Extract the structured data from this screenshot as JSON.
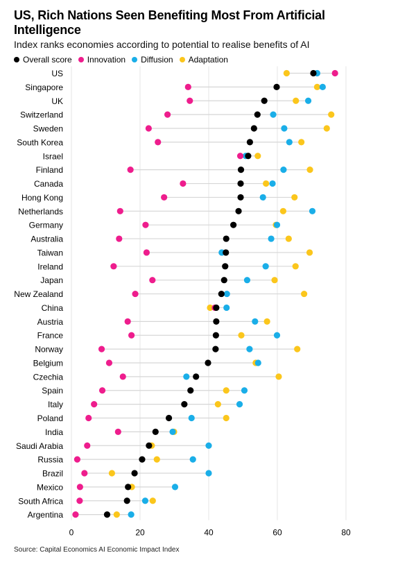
{
  "title": "US, Rich Nations Seen Benefiting Most From Artificial Intelligence",
  "subtitle": "Index ranks economies according to potential to realise benefits of AI",
  "source": "Source: Capital Economics AI Economic Impact Index",
  "colors": {
    "overall": "#000000",
    "innovation": "#ee1d8d",
    "diffusion": "#1aaee8",
    "adaptation": "#fbc61c",
    "range_line": "#d6d6d6",
    "grid": "#e6e6e6"
  },
  "chart_data": {
    "type": "scatter",
    "title": "US, Rich Nations Seen Benefiting Most From Artificial Intelligence",
    "subtitle": "Index ranks economies according to potential to realise benefits of AI",
    "xlabel": "",
    "ylabel": "",
    "xlim": [
      0,
      80
    ],
    "x_ticks": [
      0,
      20,
      40,
      60,
      80
    ],
    "grid": true,
    "legend_position": "top-left",
    "categories": [
      "US",
      "Singapore",
      "UK",
      "Switzerland",
      "Sweden",
      "South Korea",
      "Israel",
      "Finland",
      "Canada",
      "Hong Kong",
      "Netherlands",
      "Germany",
      "Australia",
      "Taiwan",
      "Ireland",
      "Japan",
      "New Zealand",
      "China",
      "Austria",
      "France",
      "Norway",
      "Belgium",
      "Czechia",
      "Spain",
      "Italy",
      "Poland",
      "India",
      "Saudi Arabia",
      "Russia",
      "Brazil",
      "Mexico",
      "South Africa",
      "Argentina"
    ],
    "series": [
      {
        "name": "Overall score",
        "key": "overall",
        "values": [
          70.5,
          59.8,
          56.2,
          54.2,
          53.2,
          52,
          51.5,
          49.4,
          49.3,
          49.3,
          48.7,
          47.2,
          45.1,
          45,
          44.8,
          44.5,
          43.7,
          42.2,
          42.2,
          42.1,
          42,
          39.8,
          36.3,
          34.7,
          32.9,
          28.4,
          24.5,
          22.6,
          20.6,
          18.4,
          16.5,
          16.2,
          10.4
        ]
      },
      {
        "name": "Innovation",
        "key": "innovation",
        "values": [
          76.8,
          34,
          34.5,
          28,
          22.5,
          25.2,
          49.2,
          17.2,
          32.5,
          27,
          14.2,
          21.6,
          13.9,
          21.9,
          12.3,
          23.6,
          18.6,
          41.8,
          16.4,
          17.5,
          8.8,
          11,
          15,
          9,
          6.6,
          5,
          13.6,
          4.6,
          1.7,
          3.8,
          2.5,
          2.4,
          1.2
        ]
      },
      {
        "name": "Diffusion",
        "key": "diffusion",
        "values": [
          71.6,
          73.2,
          69,
          58.8,
          62,
          63.5,
          50.8,
          61.8,
          58.6,
          55.8,
          70.2,
          59.9,
          58.2,
          43.8,
          56.6,
          51.2,
          45.3,
          45.2,
          53.5,
          59.9,
          51.9,
          54.4,
          33.5,
          50.4,
          49,
          35,
          29.5,
          40,
          35.4,
          40,
          30.2,
          21.5,
          17.4
        ]
      },
      {
        "name": "Adaptation",
        "key": "adaptation",
        "values": [
          62.7,
          71.6,
          65.4,
          75.7,
          74.4,
          67,
          54.3,
          69.5,
          56.7,
          65,
          61.7,
          59.6,
          63.3,
          69.4,
          65.3,
          59.2,
          67.8,
          40.4,
          57,
          49.5,
          65.8,
          53.7,
          60.4,
          45.1,
          42.7,
          45.1,
          29.9,
          23.4,
          24.9,
          11.8,
          17.6,
          23.7,
          13.2
        ]
      }
    ]
  }
}
